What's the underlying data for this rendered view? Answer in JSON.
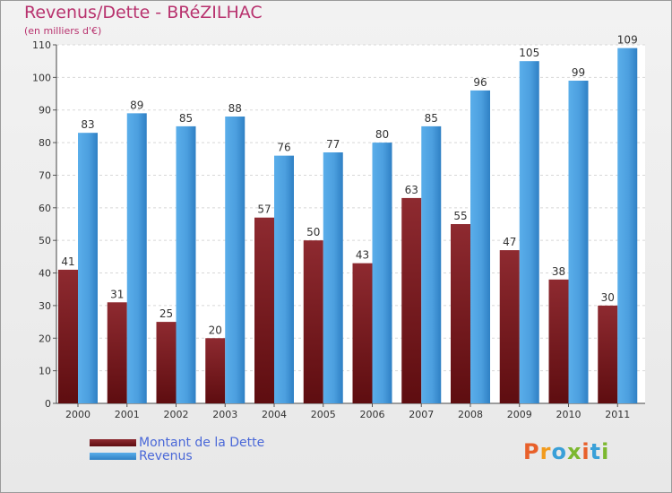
{
  "title": "Revenus/Dette - BRéZILHAC",
  "subtitle": "(en milliers d'€)",
  "chart_data": {
    "type": "bar",
    "title": "Revenus/Dette - BRéZILHAC",
    "subtitle": "(en milliers d'€)",
    "xlabel": "",
    "ylabel": "",
    "ylim": [
      0,
      110
    ],
    "yticks": [
      0,
      10,
      20,
      30,
      40,
      50,
      60,
      70,
      80,
      90,
      100,
      110
    ],
    "grid": true,
    "categories": [
      "2000",
      "2001",
      "2002",
      "2003",
      "2004",
      "2005",
      "2006",
      "2007",
      "2008",
      "2009",
      "2010",
      "2011"
    ],
    "series": [
      {
        "name": "Montant de la Dette",
        "color": "#7a1a1f",
        "values": [
          41,
          31,
          25,
          20,
          57,
          50,
          43,
          63,
          55,
          47,
          38,
          30
        ]
      },
      {
        "name": "Revenus",
        "color": "#4da1e0",
        "values": [
          83,
          89,
          85,
          88,
          76,
          77,
          80,
          85,
          96,
          105,
          99,
          109
        ]
      }
    ],
    "legend_position": "bottom-left"
  },
  "logo": {
    "text": "Proxiti",
    "letters": [
      "P",
      "r",
      "o",
      "x",
      "i",
      "t",
      "i"
    ],
    "colors": [
      "#e8602a",
      "#f29b1d",
      "#3aa0d8",
      "#7cb82f",
      "#e8602a",
      "#3aa0d8",
      "#7cb82f"
    ]
  }
}
